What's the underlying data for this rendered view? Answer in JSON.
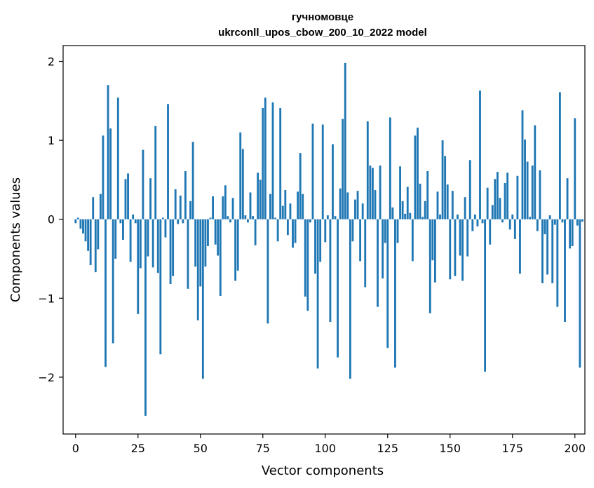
{
  "chart_data": {
    "type": "bar",
    "title": "гучномовце",
    "subtitle": "ukrconll_upos_cbow_200_10_2022 model",
    "xlabel": "Vector components",
    "ylabel": "Components values",
    "xlim": [
      -5,
      204
    ],
    "ylim": [
      -2.72,
      2.2
    ],
    "xticks": [
      0,
      25,
      50,
      75,
      100,
      125,
      150,
      175,
      200
    ],
    "yticks": [
      -2,
      -1,
      0,
      1,
      2
    ],
    "ytick_labels": [
      "−2",
      "−1",
      "0",
      "1",
      "2"
    ],
    "bar_color": "#1f77b4",
    "grid": false,
    "values": [
      -0.05,
      0.02,
      -0.12,
      -0.18,
      -0.28,
      -0.4,
      -0.58,
      0.28,
      -0.67,
      -0.38,
      0.32,
      1.06,
      -1.87,
      1.7,
      1.15,
      -1.57,
      -0.5,
      1.54,
      -0.05,
      -0.26,
      0.51,
      0.58,
      -0.54,
      0.06,
      -0.05,
      -1.2,
      -0.62,
      0.88,
      -2.49,
      -0.47,
      0.52,
      -0.61,
      1.18,
      -0.68,
      -1.71,
      0.02,
      -0.23,
      1.46,
      -0.82,
      -0.72,
      0.38,
      -0.06,
      0.3,
      -0.05,
      0.61,
      -0.88,
      0.23,
      0.98,
      -0.6,
      -1.28,
      -0.85,
      -2.02,
      -0.6,
      -0.34,
      0.02,
      0.29,
      -0.32,
      -0.46,
      -0.97,
      0.29,
      0.43,
      0.04,
      -0.04,
      0.27,
      -0.78,
      -0.65,
      1.1,
      0.89,
      0.05,
      -0.04,
      0.34,
      0.04,
      -0.33,
      0.59,
      0.5,
      1.41,
      1.54,
      -1.32,
      0.32,
      1.48,
      0.02,
      -0.28,
      1.41,
      0.17,
      0.37,
      -0.2,
      0.2,
      -0.36,
      -0.3,
      0.35,
      0.84,
      0.32,
      -0.98,
      -1.16,
      -0.04,
      1.21,
      -0.69,
      -1.89,
      -0.54,
      1.2,
      -0.29,
      0.05,
      -1.3,
      0.95,
      0.04,
      -1.75,
      0.39,
      1.27,
      1.98,
      0.34,
      -2.02,
      -0.28,
      0.25,
      0.36,
      -0.53,
      0.2,
      -0.86,
      1.24,
      0.68,
      0.65,
      0.37,
      -1.11,
      0.68,
      -0.75,
      -0.3,
      -1.63,
      1.29,
      0.15,
      -1.88,
      -0.3,
      0.67,
      0.23,
      0.07,
      0.41,
      0.08,
      -0.53,
      1.06,
      1.16,
      0.45,
      0.03,
      0.23,
      0.61,
      -1.19,
      -0.52,
      -0.8,
      0.35,
      0.06,
      1.0,
      0.8,
      0.44,
      -0.76,
      0.36,
      -0.72,
      0.06,
      -0.46,
      -0.78,
      0.28,
      -0.47,
      0.75,
      -0.15,
      0.06,
      -0.09,
      1.63,
      -0.05,
      -1.93,
      0.4,
      -0.32,
      0.18,
      0.51,
      0.6,
      0.27,
      -0.04,
      0.46,
      0.59,
      -0.13,
      0.06,
      -0.25,
      0.55,
      -0.69,
      1.38,
      1.01,
      0.73,
      0.03,
      0.68,
      1.19,
      -0.15,
      0.62,
      -0.81,
      -0.19,
      -0.7,
      0.05,
      -0.81,
      -0.07,
      -1.11,
      1.61,
      -0.04,
      -1.3,
      0.52,
      -0.37,
      -0.34,
      1.28,
      -0.08,
      -1.88,
      -0.03
    ]
  }
}
